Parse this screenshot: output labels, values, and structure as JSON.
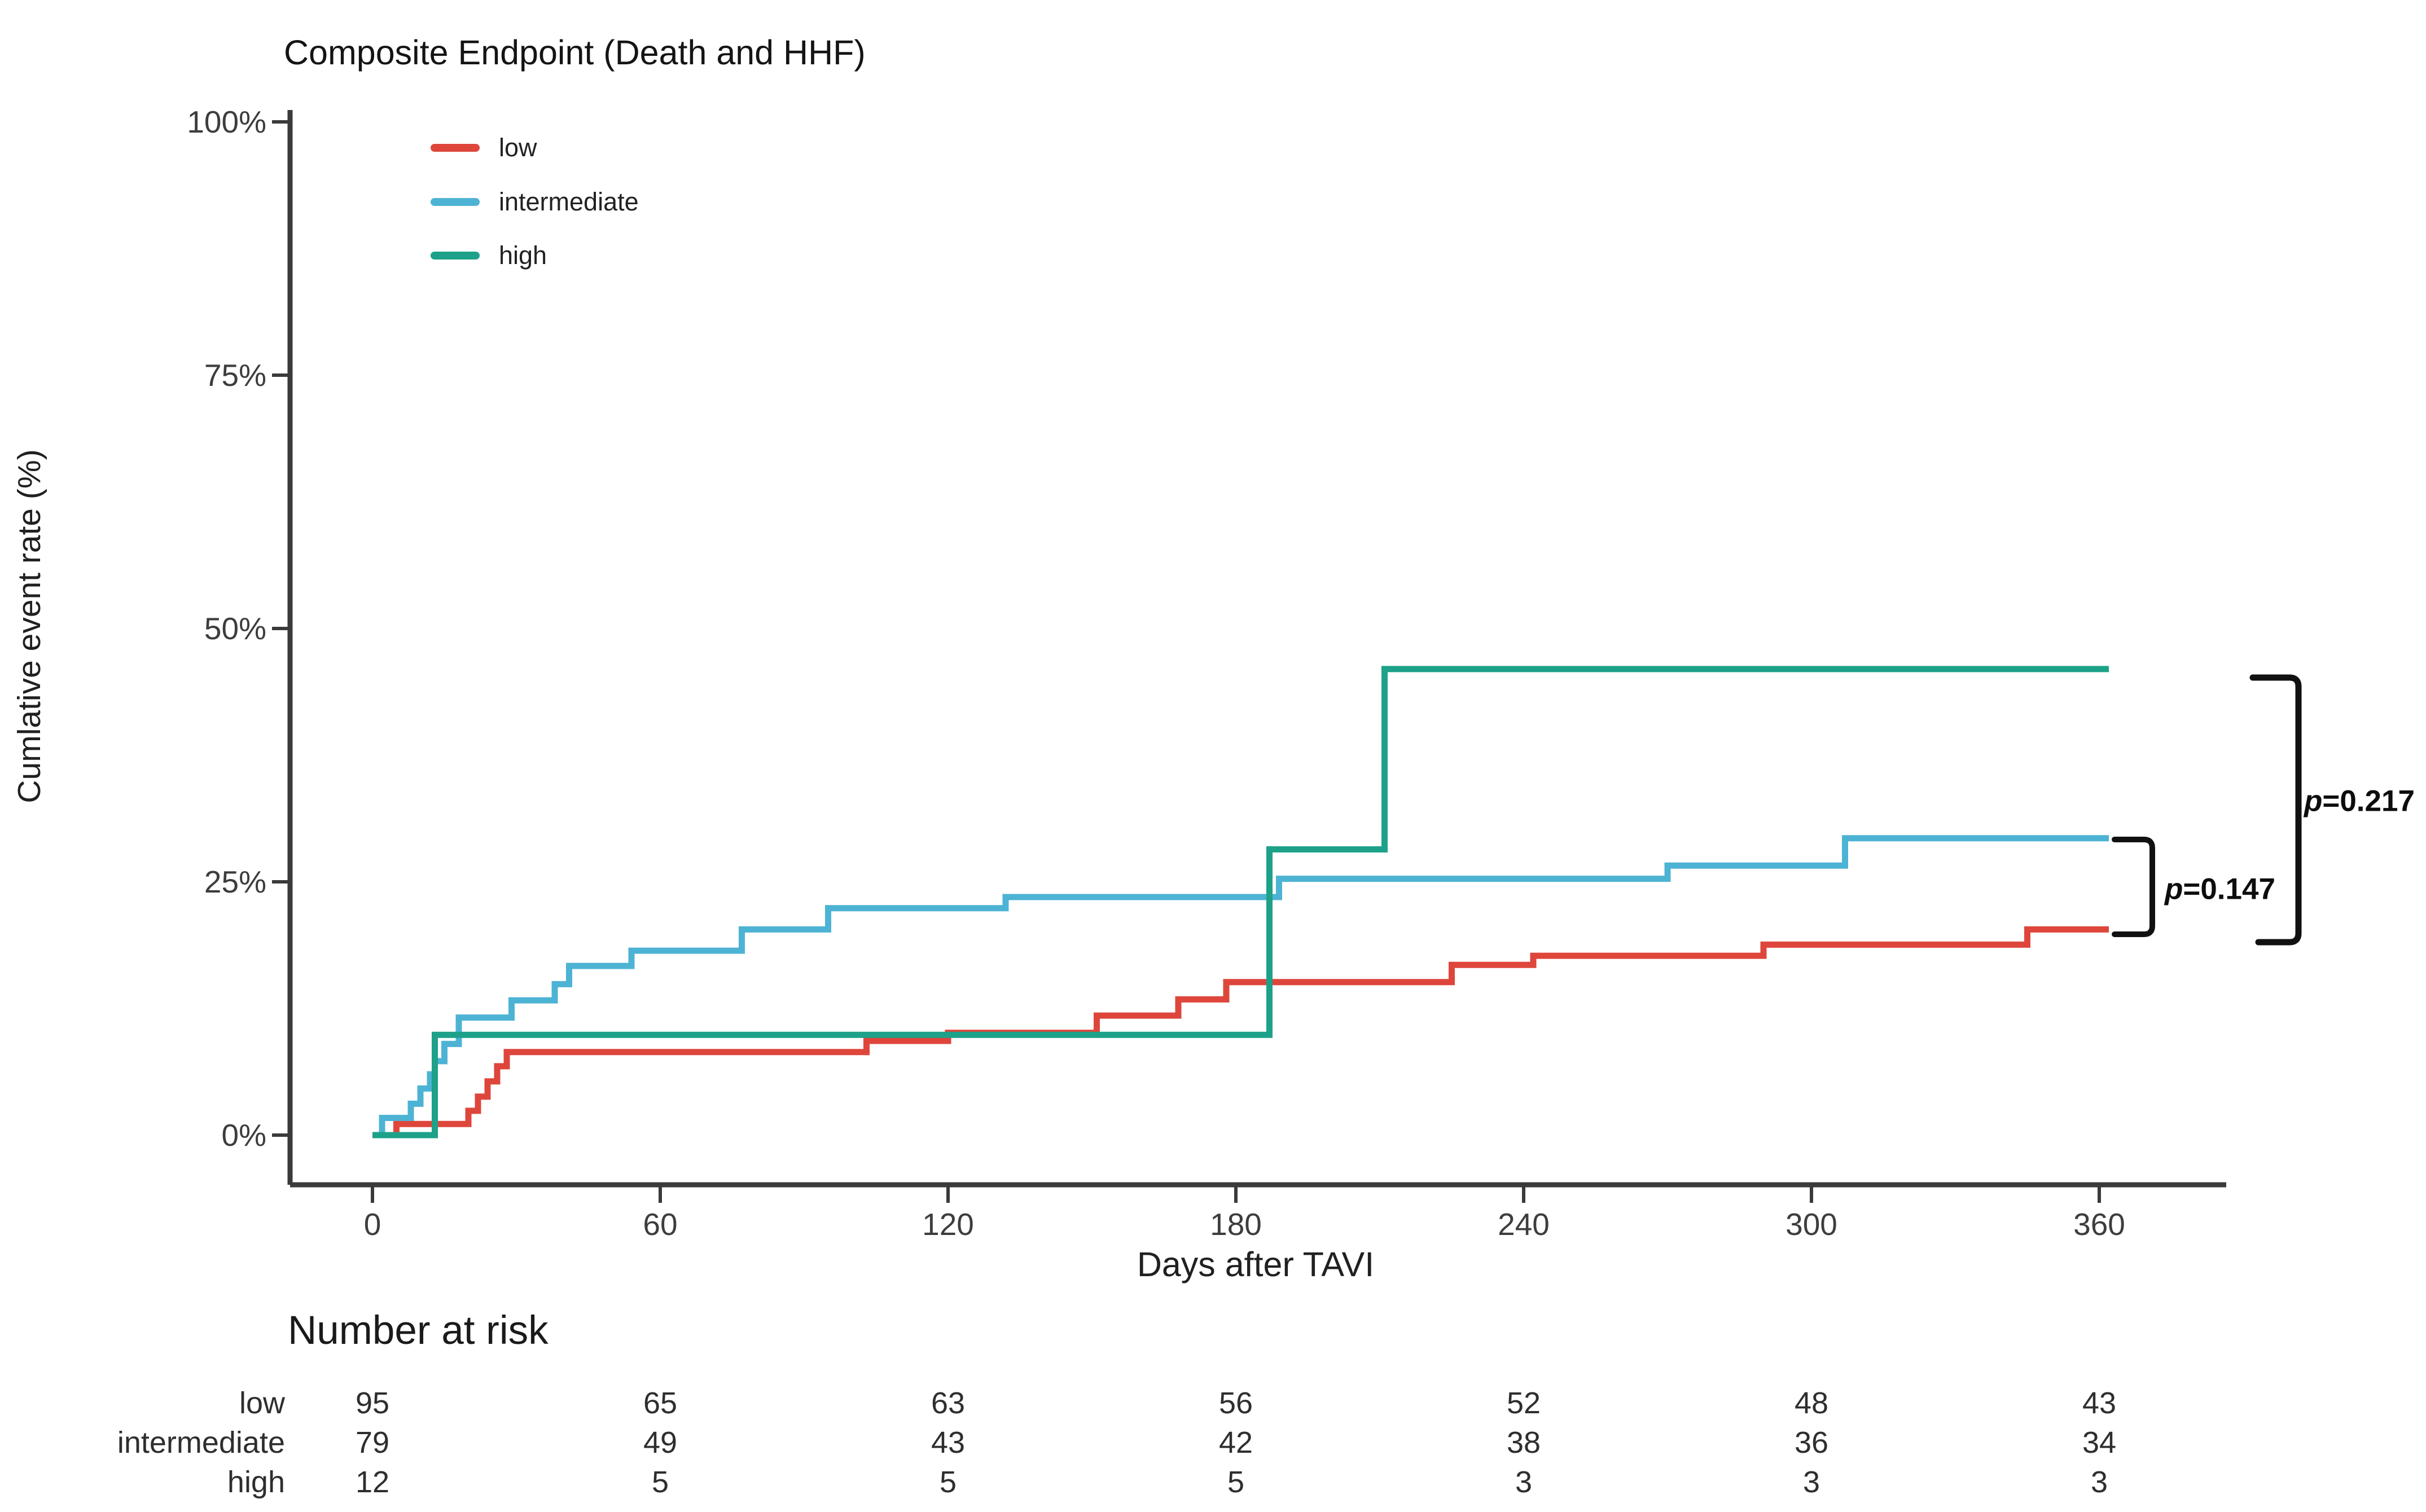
{
  "chart_data": {
    "type": "line",
    "subtype": "kaplan-meier-cumulative-event-step-curves",
    "title": "Composite Endpoint (Death and HHF)",
    "xlabel": "Days after TAVI",
    "ylabel": "Cumlative event rate (%)",
    "xlim": [
      0,
      380
    ],
    "ylim": [
      0,
      100
    ],
    "grid": false,
    "legend_position": "inside-top-left",
    "x_ticks": [
      0,
      60,
      120,
      180,
      240,
      300,
      360
    ],
    "y_ticks": [
      {
        "value": 0,
        "label": "0%"
      },
      {
        "value": 25,
        "label": "25%"
      },
      {
        "value": 50,
        "label": "50%"
      },
      {
        "value": 75,
        "label": "75%"
      },
      {
        "value": 100,
        "label": "100%"
      }
    ],
    "series": [
      {
        "name": "low",
        "color": "#DE463B",
        "steps_day_pct": [
          [
            0,
            0
          ],
          [
            5,
            1.1
          ],
          [
            20,
            2.4
          ],
          [
            22,
            3.8
          ],
          [
            24,
            5.3
          ],
          [
            26,
            6.8
          ],
          [
            28,
            8.2
          ],
          [
            103,
            9.3
          ],
          [
            120,
            10.1
          ],
          [
            151,
            11.8
          ],
          [
            168,
            13.4
          ],
          [
            178,
            15.1
          ],
          [
            225,
            16.8
          ],
          [
            242,
            17.7
          ],
          [
            290,
            18.8
          ],
          [
            345,
            20.3
          ],
          [
            362,
            20.3
          ]
        ]
      },
      {
        "name": "intermediate",
        "color": "#4DB3D4",
        "steps_day_pct": [
          [
            0,
            0
          ],
          [
            2,
            1.7
          ],
          [
            8,
            3.1
          ],
          [
            10,
            4.6
          ],
          [
            12,
            6.0
          ],
          [
            13,
            7.3
          ],
          [
            15,
            9.0
          ],
          [
            18,
            11.6
          ],
          [
            29,
            13.3
          ],
          [
            38,
            14.9
          ],
          [
            41,
            16.7
          ],
          [
            54,
            18.2
          ],
          [
            77,
            20.3
          ],
          [
            95,
            22.4
          ],
          [
            132,
            23.5
          ],
          [
            189,
            25.3
          ],
          [
            270,
            26.6
          ],
          [
            307,
            29.3
          ],
          [
            362,
            29.3
          ]
        ]
      },
      {
        "name": "high",
        "color": "#1DA189",
        "steps_day_pct": [
          [
            0,
            0
          ],
          [
            13,
            9.9
          ],
          [
            187,
            28.2
          ],
          [
            211,
            46.0
          ],
          [
            362,
            46.0
          ]
        ]
      }
    ],
    "annotations": [
      {
        "p": "p",
        "text": "=0.147"
      },
      {
        "p": "p",
        "text": "=0.217"
      }
    ]
  },
  "number_at_risk": {
    "heading": "Number at risk",
    "time_points": [
      0,
      60,
      120,
      180,
      240,
      300,
      360
    ],
    "rows": [
      {
        "label": "low",
        "values": [
          95,
          65,
          63,
          56,
          52,
          48,
          43
        ]
      },
      {
        "label": "intermediate",
        "values": [
          79,
          49,
          43,
          42,
          38,
          36,
          34
        ]
      },
      {
        "label": "high",
        "values": [
          12,
          5,
          5,
          5,
          3,
          3,
          3
        ]
      }
    ]
  },
  "colors": {
    "axis": "#3a3a3a",
    "bracket": "#111111",
    "background": "#ffffff"
  }
}
